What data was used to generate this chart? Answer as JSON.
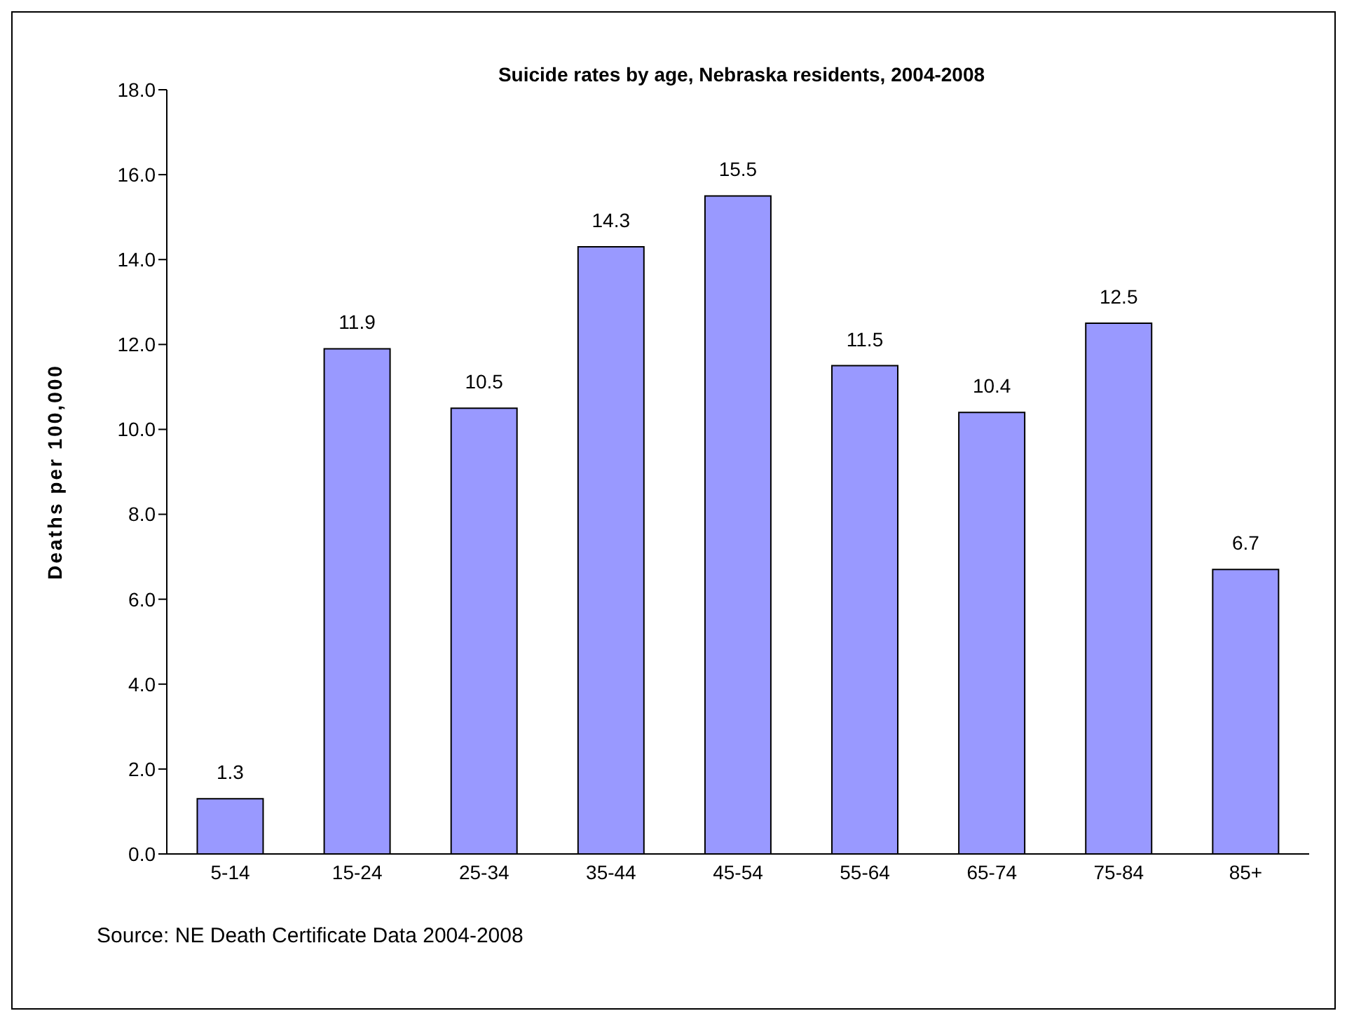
{
  "chart_data": {
    "type": "bar",
    "title": "Suicide rates by age, Nebraska residents, 2004-2008",
    "ylabel": "Deaths per 100,000",
    "categories": [
      "5-14",
      "15-24",
      "25-34",
      "35-44",
      "45-54",
      "55-64",
      "65-74",
      "75-84",
      "85+"
    ],
    "values": [
      1.3,
      11.9,
      10.5,
      14.3,
      15.5,
      11.5,
      10.4,
      12.5,
      6.7
    ],
    "color": "#9999ff",
    "ylim": [
      0,
      18
    ],
    "yticks": [
      {
        "value": 0,
        "label": "0.0"
      },
      {
        "value": 2,
        "label": "2.0"
      },
      {
        "value": 4,
        "label": "4.0"
      },
      {
        "value": 6,
        "label": "6.0"
      },
      {
        "value": 8,
        "label": "8.0"
      },
      {
        "value": 10,
        "label": "10.0"
      },
      {
        "value": 12,
        "label": "12.0"
      },
      {
        "value": 14,
        "label": "14.0"
      },
      {
        "value": 16,
        "label": "16.0"
      },
      {
        "value": 18,
        "label": "18.0"
      }
    ],
    "data_labels": true,
    "annotations": [
      "Source: NE Death Certificate Data 2004-2008"
    ]
  }
}
